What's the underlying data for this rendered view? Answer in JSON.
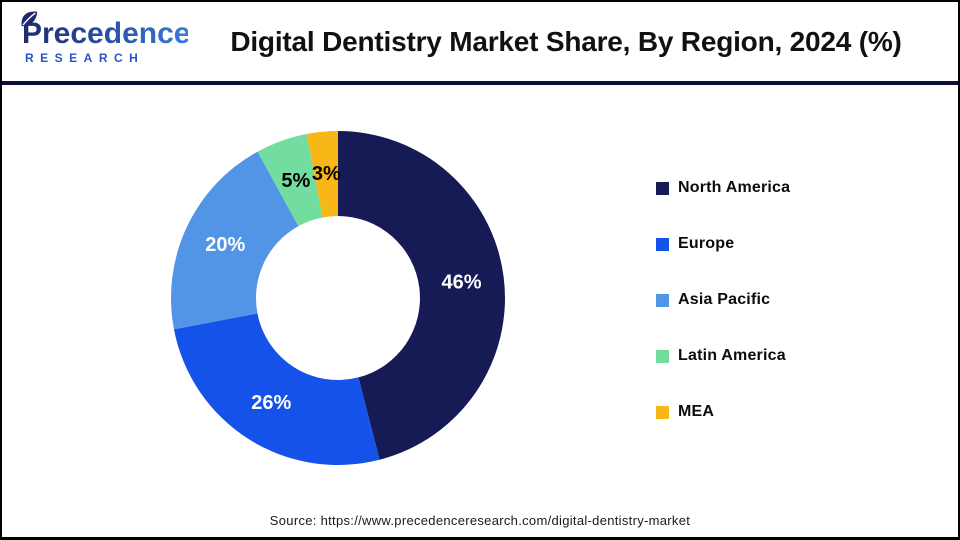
{
  "brand": {
    "name": "Precedence",
    "subname": "RESEARCH"
  },
  "title": "Digital Dentistry Market Share, By Region, 2024 (%)",
  "source": "Source: https://www.precedenceresearch.com/digital-dentistry-market",
  "colors": {
    "divider": "#0d1138",
    "border": "#000000",
    "logo_navy": "#1e2a6e",
    "logo_blue": "#3a7ad8",
    "research_blue": "#2b55c4"
  },
  "chart_data": {
    "type": "pie",
    "subtype": "donut",
    "title": "Digital Dentistry Market Share, By Region, 2024 (%)",
    "unit": "%",
    "start_angle_deg": 0,
    "direction": "clockwise",
    "inner_radius_ratio": 0.49,
    "legend_position": "right",
    "categories": [
      "North America",
      "Europe",
      "Asia Pacific",
      "Latin America",
      "MEA"
    ],
    "values": [
      46,
      26,
      20,
      5,
      3
    ],
    "series": [
      {
        "label": "North America",
        "value": 46,
        "color": "#161a55",
        "label_color": "#ffffff"
      },
      {
        "label": "Europe",
        "value": 26,
        "color": "#1552ea",
        "label_color": "#ffffff"
      },
      {
        "label": "Asia Pacific",
        "value": 20,
        "color": "#5295e6",
        "label_color": "#ffffff"
      },
      {
        "label": "Latin America",
        "value": 5,
        "color": "#73dda0",
        "label_color": "#000000"
      },
      {
        "label": "MEA",
        "value": 3,
        "color": "#f8b717",
        "label_color": "#000000"
      }
    ]
  }
}
